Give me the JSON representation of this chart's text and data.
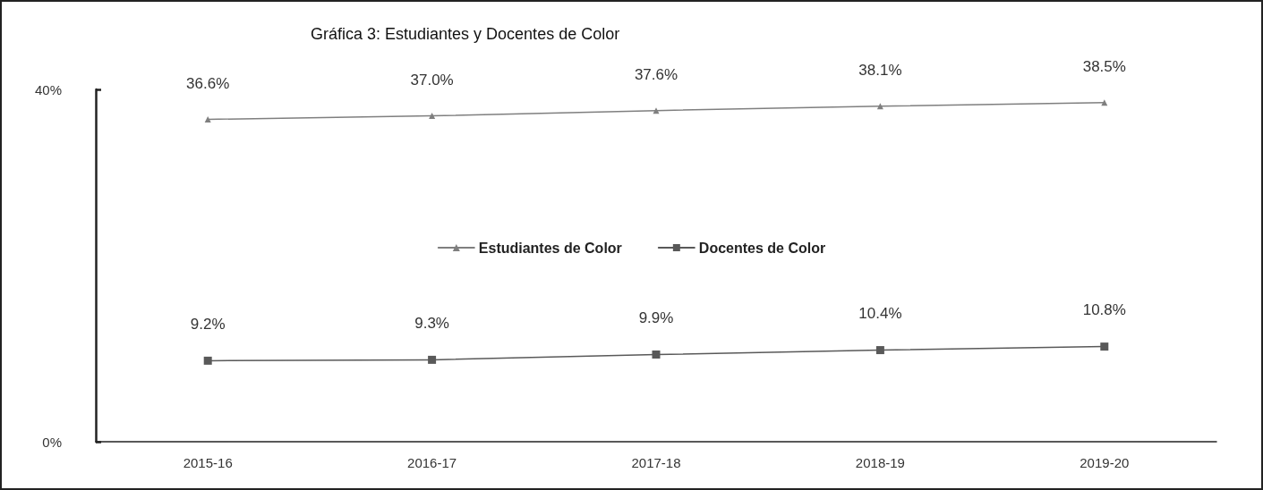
{
  "chart_data": {
    "type": "line",
    "title": "Gráfica 3: Estudiantes y Docentes de Color",
    "categories": [
      "2015-16",
      "2016-17",
      "2017-18",
      "2018-19",
      "2019-20"
    ],
    "series": [
      {
        "name": "Estudiantes de Color",
        "color": "#7f7f7f",
        "marker": "triangle",
        "values": [
          36.6,
          37.0,
          37.6,
          38.1,
          38.5
        ],
        "value_labels": [
          "36.6%",
          "37.0%",
          "37.6%",
          "38.1%",
          "38.5%"
        ]
      },
      {
        "name": "Docentes de Color",
        "color": "#595959",
        "marker": "square",
        "values": [
          9.2,
          9.3,
          9.9,
          10.4,
          10.8
        ],
        "value_labels": [
          "9.2%",
          "9.3%",
          "9.9%",
          "10.4%",
          "10.8%"
        ]
      }
    ],
    "ylim": [
      0,
      40
    ],
    "yticks": [
      {
        "value": 0,
        "label": "0%"
      },
      {
        "value": 40,
        "label": "40%"
      }
    ],
    "grid": false,
    "legend": "center",
    "line_style": "solid"
  }
}
